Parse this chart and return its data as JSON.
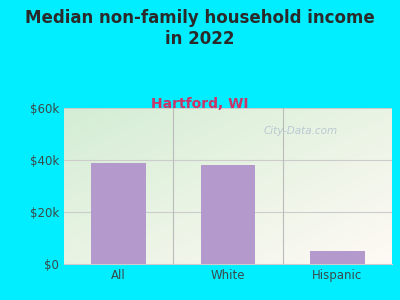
{
  "title": "Median non-family household income\nin 2022",
  "subtitle": "Hartford, WI",
  "categories": [
    "All",
    "White",
    "Hispanic"
  ],
  "values": [
    39000,
    38000,
    5000
  ],
  "bar_color": "#b399cc",
  "outer_bg_color": "#00eeff",
  "title_color": "#2a2a2a",
  "subtitle_color": "#cc3366",
  "tick_label_color": "#3a4a4a",
  "ylim": [
    0,
    60000
  ],
  "yticks": [
    0,
    20000,
    40000,
    60000
  ],
  "ytick_labels": [
    "$0",
    "$20k",
    "$40k",
    "$60k"
  ],
  "watermark": "City-Data.com",
  "title_fontsize": 12,
  "subtitle_fontsize": 10,
  "tick_fontsize": 8.5,
  "grid_color": "#cccccc",
  "divider_color": "#bbbbbb"
}
